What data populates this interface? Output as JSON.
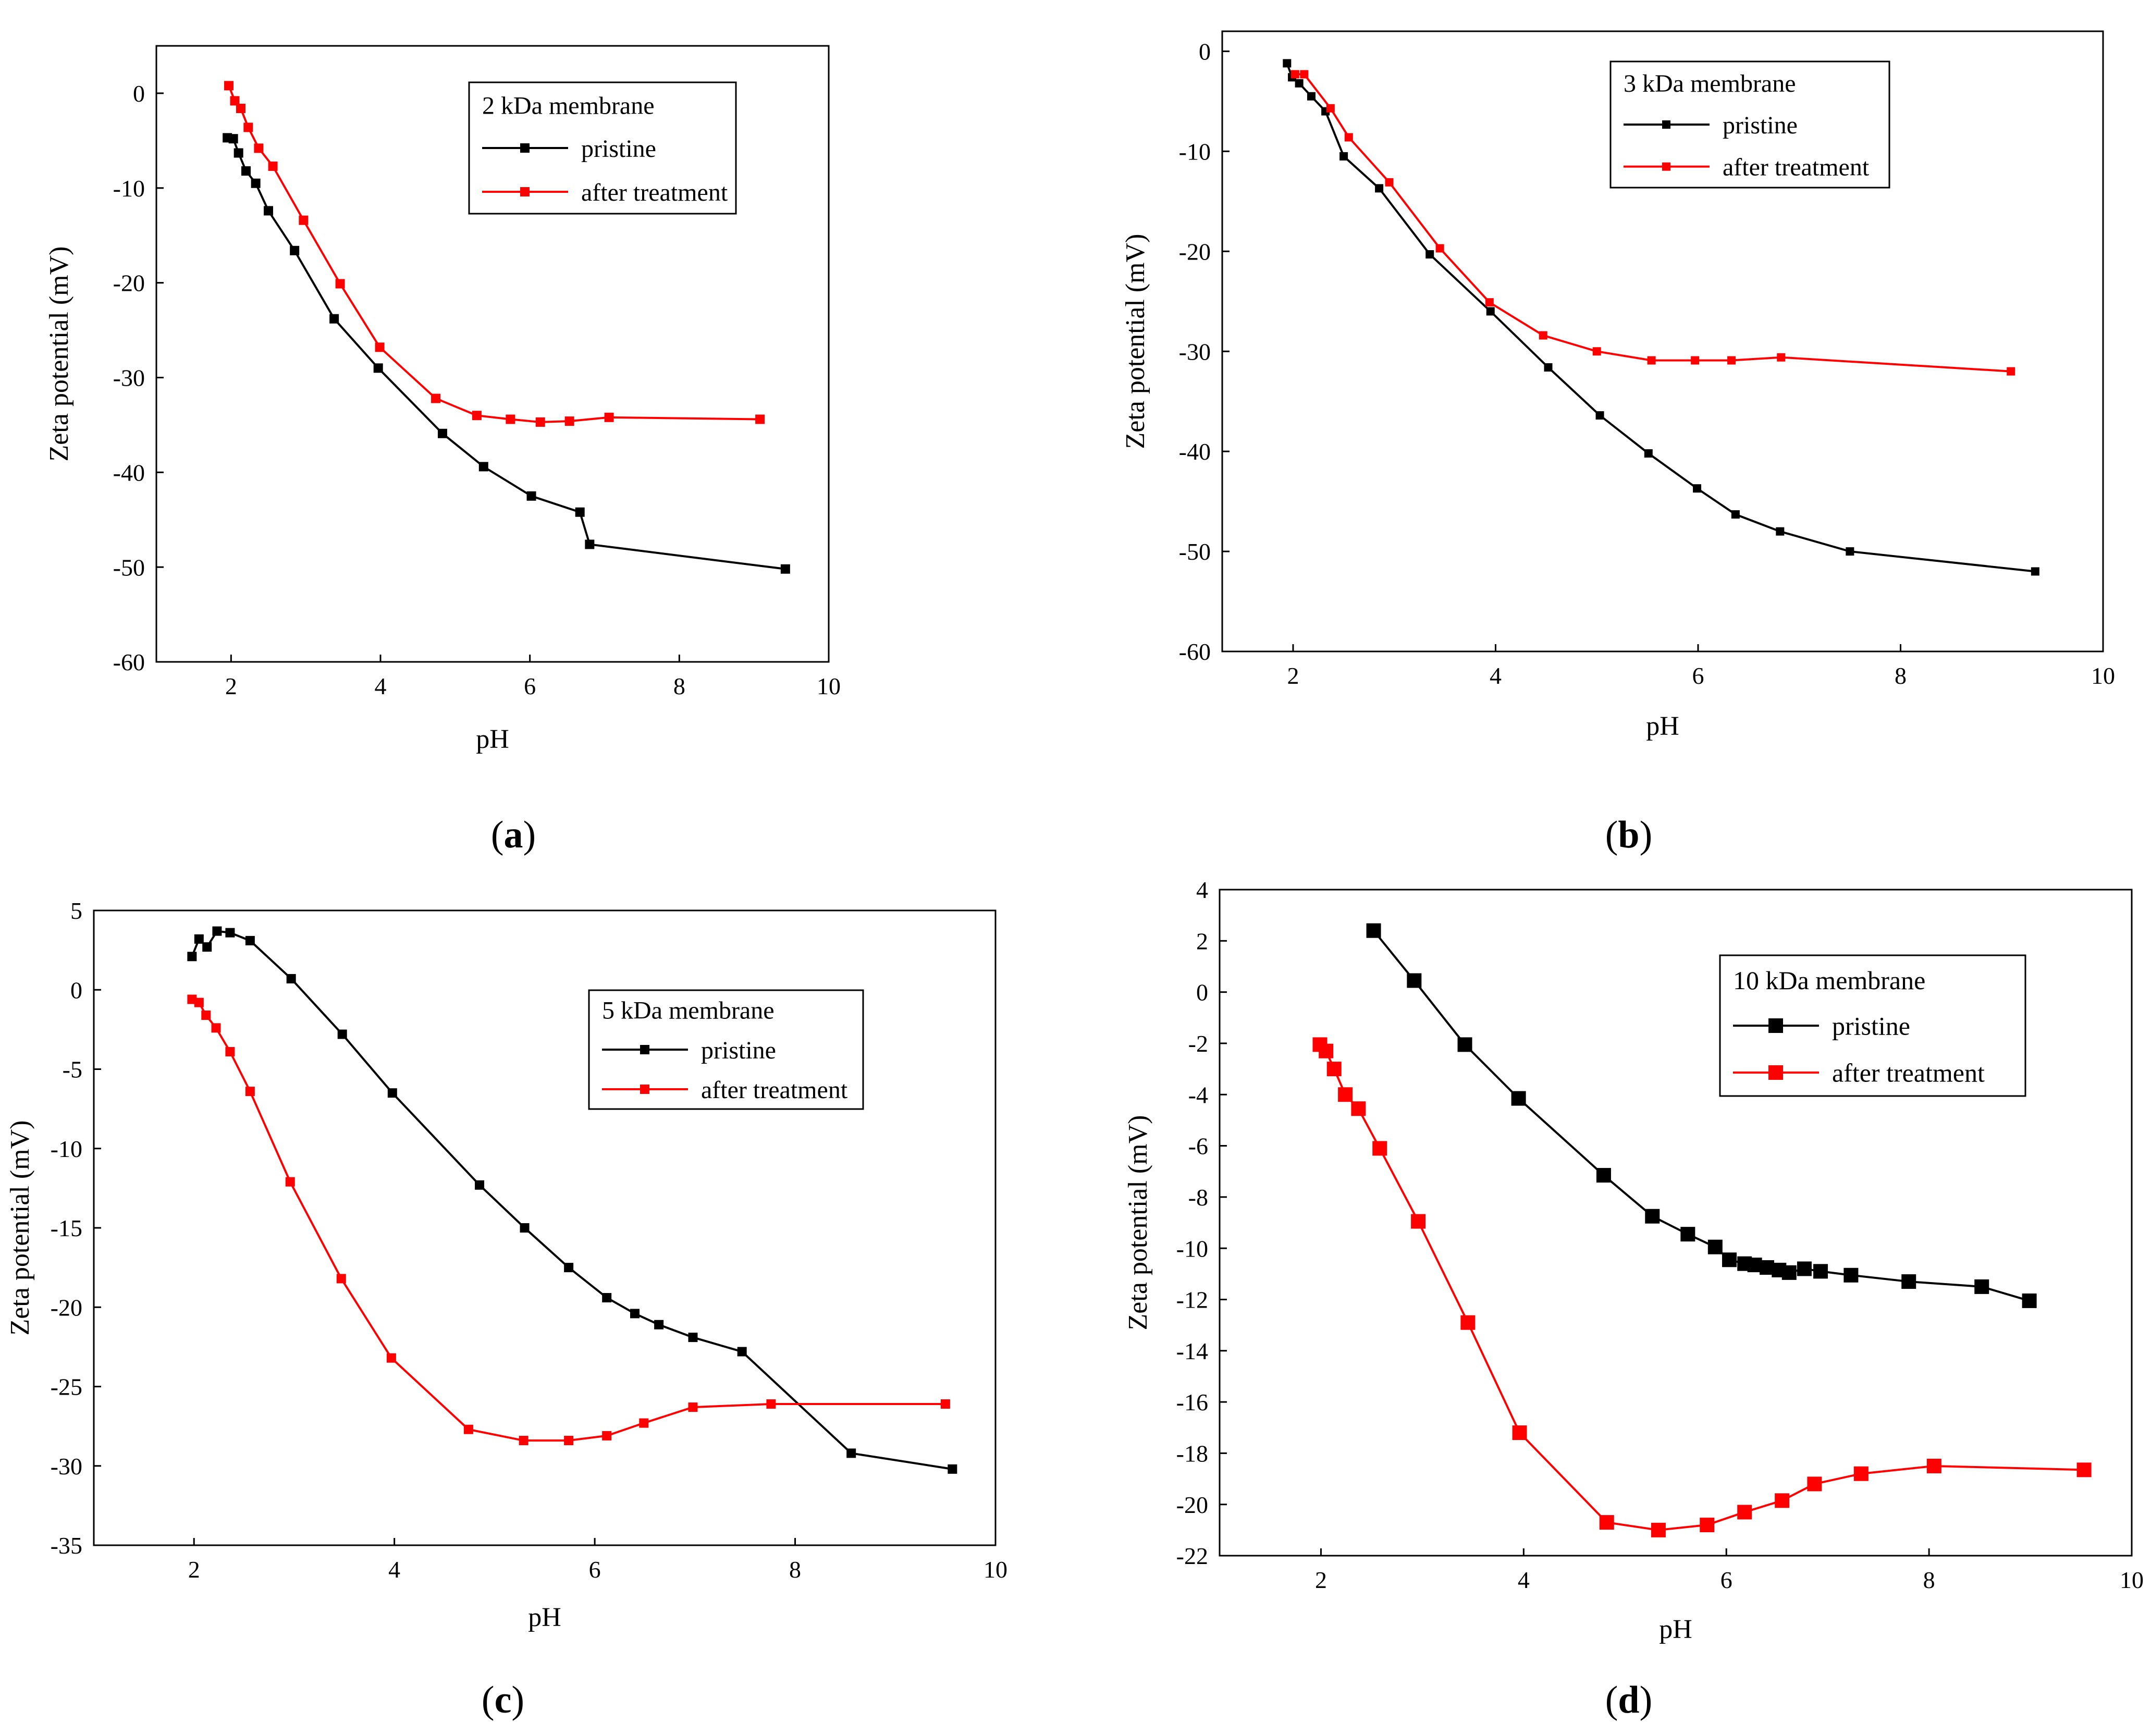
{
  "colors": {
    "pristine": "#000000",
    "after_treatment": "#ff0000"
  },
  "captions": [
    "a",
    "b",
    "c",
    "d"
  ],
  "chart_data": [
    {
      "id": "a",
      "type": "line",
      "title": "2 kDa membrane",
      "xlabel": "pH",
      "ylabel": "Zeta potential (mV)",
      "xlim": [
        1,
        10
      ],
      "ylim": [
        -60,
        5
      ],
      "xticks": [
        2,
        4,
        6,
        8,
        10
      ],
      "yticks": [
        0,
        -10,
        -20,
        -30,
        -40,
        -50,
        -60
      ],
      "legend_position": "top-right",
      "series": [
        {
          "name": "pristine",
          "color": "#000000",
          "x": [
            1.95,
            2.03,
            2.1,
            2.2,
            2.33,
            2.5,
            2.85,
            3.38,
            3.97,
            4.83,
            5.38,
            6.02,
            6.67,
            6.8,
            9.42
          ],
          "y": [
            -4.7,
            -4.8,
            -6.3,
            -8.2,
            -9.5,
            -12.4,
            -16.6,
            -23.8,
            -29.0,
            -35.9,
            -39.4,
            -42.5,
            -44.2,
            -47.6,
            -50.2
          ]
        },
        {
          "name": "after treatment",
          "color": "#ff0000",
          "x": [
            1.97,
            2.05,
            2.13,
            2.23,
            2.37,
            2.56,
            2.97,
            3.46,
            3.99,
            4.74,
            5.29,
            5.74,
            6.14,
            6.53,
            7.06,
            9.08
          ],
          "y": [
            0.8,
            -0.8,
            -1.6,
            -3.6,
            -5.8,
            -7.7,
            -13.4,
            -20.1,
            -26.8,
            -32.2,
            -34.0,
            -34.4,
            -34.7,
            -34.6,
            -34.2,
            -34.4
          ]
        }
      ]
    },
    {
      "id": "b",
      "type": "line",
      "title": "3 kDa membrane",
      "xlabel": "pH",
      "ylabel": "Zeta potential (mV)",
      "xlim": [
        1.3,
        10
      ],
      "ylim": [
        -60,
        2
      ],
      "xticks": [
        2,
        4,
        6,
        8,
        10
      ],
      "yticks": [
        0,
        -10,
        -20,
        -30,
        -40,
        -50,
        -60
      ],
      "legend_position": "top-right",
      "series": [
        {
          "name": "pristine",
          "color": "#000000",
          "x": [
            1.94,
            1.99,
            2.06,
            2.18,
            2.32,
            2.5,
            2.85,
            3.35,
            3.95,
            4.52,
            5.03,
            5.51,
            5.99,
            6.37,
            6.81,
            7.5,
            9.33
          ],
          "y": [
            -1.2,
            -2.6,
            -3.2,
            -4.5,
            -6.0,
            -10.5,
            -13.7,
            -20.3,
            -26.0,
            -31.6,
            -36.4,
            -40.2,
            -43.7,
            -46.3,
            -48.0,
            -50.0,
            -52.0
          ]
        },
        {
          "name": "after treatment",
          "color": "#ff0000",
          "x": [
            2.02,
            2.11,
            2.37,
            2.55,
            2.95,
            3.45,
            3.94,
            4.47,
            5.0,
            5.54,
            5.97,
            6.33,
            6.82,
            9.09
          ],
          "y": [
            -2.3,
            -2.3,
            -5.7,
            -8.6,
            -13.1,
            -19.7,
            -25.1,
            -28.4,
            -30.0,
            -30.9,
            -30.9,
            -30.9,
            -30.6,
            -32.0
          ]
        }
      ]
    },
    {
      "id": "c",
      "type": "line",
      "title": "5 kDa membrane",
      "xlabel": "pH",
      "ylabel": "Zeta potential (mV)",
      "xlim": [
        1,
        10
      ],
      "ylim": [
        -35,
        5
      ],
      "xticks": [
        2,
        4,
        6,
        8,
        10
      ],
      "yticks": [
        5,
        0,
        -5,
        -10,
        -15,
        -20,
        -25,
        -30,
        -35
      ],
      "legend_position": "center-right",
      "series": [
        {
          "name": "pristine",
          "color": "#000000",
          "x": [
            1.98,
            2.05,
            2.13,
            2.23,
            2.36,
            2.56,
            2.97,
            3.48,
            3.98,
            4.85,
            5.3,
            5.74,
            6.12,
            6.4,
            6.64,
            6.98,
            7.47,
            8.56,
            9.57
          ],
          "y": [
            2.1,
            3.2,
            2.7,
            3.7,
            3.6,
            3.1,
            0.7,
            -2.8,
            -6.5,
            -12.3,
            -15.0,
            -17.5,
            -19.4,
            -20.4,
            -21.1,
            -21.9,
            -22.8,
            -29.2,
            -30.2
          ]
        },
        {
          "name": "after treatment",
          "color": "#ff0000",
          "x": [
            1.98,
            2.05,
            2.12,
            2.22,
            2.36,
            2.56,
            2.96,
            3.47,
            3.97,
            4.74,
            5.29,
            5.74,
            6.12,
            6.49,
            6.98,
            7.76,
            9.5
          ],
          "y": [
            -0.6,
            -0.8,
            -1.6,
            -2.4,
            -3.9,
            -6.4,
            -12.1,
            -18.2,
            -23.2,
            -27.7,
            -28.4,
            -28.4,
            -28.1,
            -27.3,
            -26.3,
            -26.1,
            -26.1
          ]
        }
      ]
    },
    {
      "id": "d",
      "type": "line",
      "title": "10 kDa membrane",
      "xlabel": "pH",
      "ylabel": "Zeta potential (mV)",
      "xlim": [
        1,
        10
      ],
      "ylim": [
        -22,
        4
      ],
      "xticks": [
        2,
        4,
        6,
        8,
        10
      ],
      "yticks": [
        4,
        2,
        0,
        -2,
        -4,
        -6,
        -8,
        -10,
        -12,
        -14,
        -16,
        -18,
        -20,
        -22
      ],
      "legend_position": "top-right",
      "series": [
        {
          "name": "pristine",
          "color": "#000000",
          "x": [
            2.52,
            2.92,
            3.42,
            3.95,
            4.79,
            5.27,
            5.62,
            5.89,
            6.03,
            6.18,
            6.28,
            6.4,
            6.52,
            6.62,
            6.77,
            6.93,
            7.23,
            7.8,
            8.52,
            8.99
          ],
          "y": [
            2.4,
            0.45,
            -2.05,
            -4.15,
            -7.15,
            -8.75,
            -9.45,
            -9.95,
            -10.45,
            -10.6,
            -10.65,
            -10.75,
            -10.85,
            -10.95,
            -10.8,
            -10.9,
            -11.05,
            -11.3,
            -11.5,
            -12.05
          ]
        },
        {
          "name": "after treatment",
          "color": "#ff0000",
          "x": [
            1.99,
            2.05,
            2.13,
            2.24,
            2.37,
            2.58,
            2.96,
            3.45,
            3.96,
            4.82,
            5.33,
            5.81,
            6.18,
            6.55,
            6.87,
            7.33,
            8.05,
            9.53
          ],
          "y": [
            -2.05,
            -2.3,
            -3.0,
            -4.0,
            -4.55,
            -6.1,
            -8.95,
            -12.9,
            -17.2,
            -20.7,
            -21.0,
            -20.8,
            -20.3,
            -19.85,
            -19.2,
            -18.8,
            -18.5,
            -18.65
          ]
        }
      ]
    }
  ]
}
